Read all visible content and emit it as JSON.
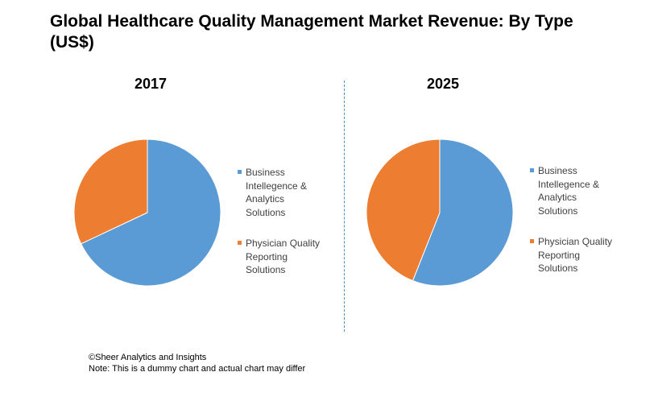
{
  "title": "Global Healthcare Quality Management Market Revenue: By Type (US$)",
  "colors": {
    "business_intelligence": "#5B9BD5",
    "physician_quality": "#ED7D31",
    "divider": "#4a90c8"
  },
  "chart_data": [
    {
      "type": "pie",
      "title": "2017",
      "series": [
        {
          "name": "Business Intellegence & Analytics Solutions",
          "value": 68
        },
        {
          "name": "Physician Quality Reporting Solutions",
          "value": 32
        }
      ],
      "legend": "right"
    },
    {
      "type": "pie",
      "title": "2025",
      "series": [
        {
          "name": "Business Intellegence & Analytics Solutions",
          "value": 56
        },
        {
          "name": "Physician Quality Reporting Solutions",
          "value": 44
        }
      ],
      "legend": "right"
    }
  ],
  "legend_labels": {
    "business_intelligence": "Business\nIntellegence  &\nAnalytics\nSolutions",
    "physician_quality": "Physician Quality\nReporting\nSolutions"
  },
  "footer": {
    "copyright": "©Sheer Analytics and Insights",
    "note": "Note: This is a dummy chart and actual chart may differ"
  }
}
